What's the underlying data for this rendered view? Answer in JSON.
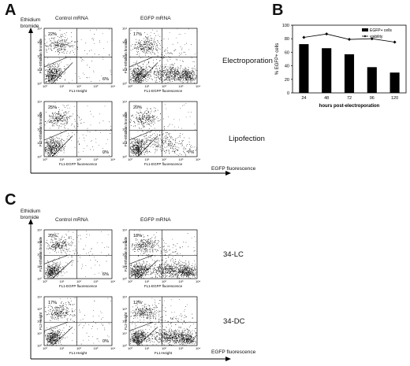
{
  "panels": {
    "A": {
      "letter": "A",
      "y_axis_label": [
        "Ethidium",
        "bromide"
      ],
      "x_axis_label": "EGFP fluorescence",
      "columns": [
        "Control mRNA",
        "EGFP mRNA"
      ],
      "rows": [
        {
          "label": "Electroporation",
          "plots": [
            {
              "ylabel": "FL2-Ethidium bromide",
              "xlabel": "FL1-Height",
              "ul": "22%",
              "lr": "6%"
            },
            {
              "ylabel": "FL2-Ethidium bromide",
              "xlabel": "FL1-EGFP fluorescence",
              "ul": "17%",
              "lr": "67%"
            }
          ]
        },
        {
          "label": "Lipofection",
          "plots": [
            {
              "ylabel": "FL2-Ethidium bromide",
              "xlabel": "FL1-EGFP fluorescence",
              "ul": "25%",
              "lr": "0%"
            },
            {
              "ylabel": "FL2-Ethidium bromide",
              "xlabel": "FL1-EGFP fluorescence",
              "ul": "20%",
              "lr": "7%"
            }
          ]
        }
      ]
    },
    "C": {
      "letter": "C",
      "y_axis_label": [
        "Ethidium",
        "bromide"
      ],
      "x_axis_label": "EGFP fluorescence",
      "columns": [
        "Control mRNA",
        "EGFP mRNA"
      ],
      "rows": [
        {
          "label": "34-LC",
          "plots": [
            {
              "ylabel": "FL2-Ethidium bromide",
              "xlabel": "FL1-EGFP fluorescence",
              "ul": "20%",
              "lr": "6%"
            },
            {
              "ylabel": "FL2-Ethidium bromide",
              "xlabel": "FL1-EGFP fluorescence",
              "ul": "18%",
              "lr": "53%"
            }
          ]
        },
        {
          "label": "34-DC",
          "plots": [
            {
              "ylabel": "FL2-Height",
              "xlabel": "FL1-Height",
              "ul": "17%",
              "lr": "0%"
            },
            {
              "ylabel": "FL2-Height",
              "xlabel": "FL1-Height",
              "ul": "12%",
              "lr": "12%"
            }
          ]
        }
      ]
    }
  },
  "chart_data": [
    {
      "type": "bar",
      "panel": "B",
      "letter": "B",
      "categories": [
        "24",
        "48",
        "72",
        "96",
        "120"
      ],
      "series": [
        {
          "name": "EGFP+ cells",
          "kind": "bar",
          "values": [
            72,
            66,
            57,
            38,
            30
          ],
          "color": "#000000"
        },
        {
          "name": "viability",
          "kind": "line",
          "values": [
            82,
            87,
            79,
            80,
            75
          ],
          "color": "#000000"
        }
      ],
      "xlabel": "hours post-electroporation",
      "ylabel": "% EGFP+ cells",
      "ylim": [
        0,
        100
      ],
      "yticks": [
        0,
        20,
        40,
        60,
        80,
        100
      ],
      "legend": "top-right"
    }
  ]
}
